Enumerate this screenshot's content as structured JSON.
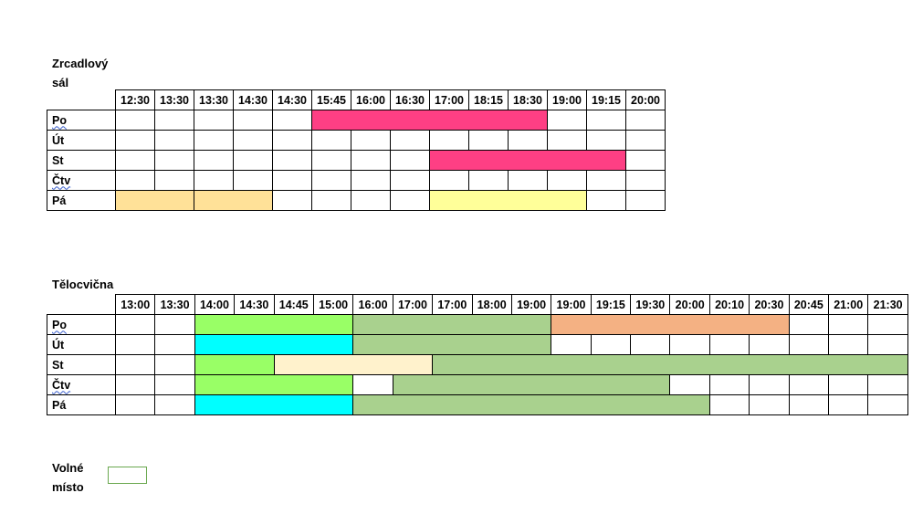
{
  "zrcadlovy": {
    "title": "Zrcadlový\nsál",
    "times": [
      "12:30",
      "13:30",
      "13:30",
      "14:30",
      "14:30",
      "15:45",
      "16:00",
      "16:30",
      "17:00",
      "18:15",
      "18:30",
      "19:00",
      "19:15",
      "20:00"
    ],
    "rows": [
      {
        "day": "Po",
        "wavy": true,
        "blocks": [
          {
            "start": 5,
            "span": 6,
            "color": "#fe3f84"
          }
        ]
      },
      {
        "day": "Út",
        "wavy": false,
        "blocks": []
      },
      {
        "day": "St",
        "wavy": false,
        "blocks": [
          {
            "start": 8,
            "span": 5,
            "color": "#fe3f84"
          }
        ]
      },
      {
        "day": "Čtv",
        "wavy": true,
        "blocks": []
      },
      {
        "day": "Pá",
        "wavy": false,
        "blocks": [
          {
            "start": 0,
            "span": 2,
            "color": "#ffe198"
          },
          {
            "start": 2,
            "span": 2,
            "color": "#ffe198"
          },
          {
            "start": 8,
            "span": 4,
            "color": "#ffff99"
          }
        ]
      }
    ]
  },
  "telocvicna": {
    "title": "Tělocvična",
    "times": [
      "13:00",
      "13:30",
      "14:00",
      "14:30",
      "14:45",
      "15:00",
      "16:00",
      "17:00",
      "17:00",
      "18:00",
      "19:00",
      "19:00",
      "19:15",
      "19:30",
      "20:00",
      "20:10",
      "20:30",
      "20:45",
      "21:00",
      "21:30"
    ],
    "rows": [
      {
        "day": "Po",
        "wavy": true,
        "blocks": [
          {
            "start": 2,
            "span": 4,
            "color": "#99ff66"
          },
          {
            "start": 6,
            "span": 5,
            "color": "#a9d18e"
          },
          {
            "start": 11,
            "span": 6,
            "color": "#f4b183"
          }
        ]
      },
      {
        "day": "Út",
        "wavy": false,
        "blocks": [
          {
            "start": 2,
            "span": 4,
            "color": "#00ffff"
          },
          {
            "start": 6,
            "span": 5,
            "color": "#a9d18e"
          }
        ]
      },
      {
        "day": "St",
        "wavy": false,
        "blocks": [
          {
            "start": 2,
            "span": 2,
            "color": "#99ff66"
          },
          {
            "start": 4,
            "span": 4,
            "color": "#fff2cc"
          },
          {
            "start": 8,
            "span": 12,
            "color": "#a9d18e"
          }
        ]
      },
      {
        "day": "Čtv",
        "wavy": true,
        "blocks": [
          {
            "start": 2,
            "span": 4,
            "color": "#99ff66"
          },
          {
            "start": 7,
            "span": 7,
            "color": "#a9d18e"
          }
        ]
      },
      {
        "day": "Pá",
        "wavy": false,
        "blocks": [
          {
            "start": 2,
            "span": 4,
            "color": "#00ffff"
          },
          {
            "start": 6,
            "span": 9,
            "color": "#a9d18e"
          }
        ]
      }
    ]
  },
  "legend": {
    "label": "Volné\nmísto",
    "color": "#ffffff",
    "border": "#6aa84f"
  }
}
